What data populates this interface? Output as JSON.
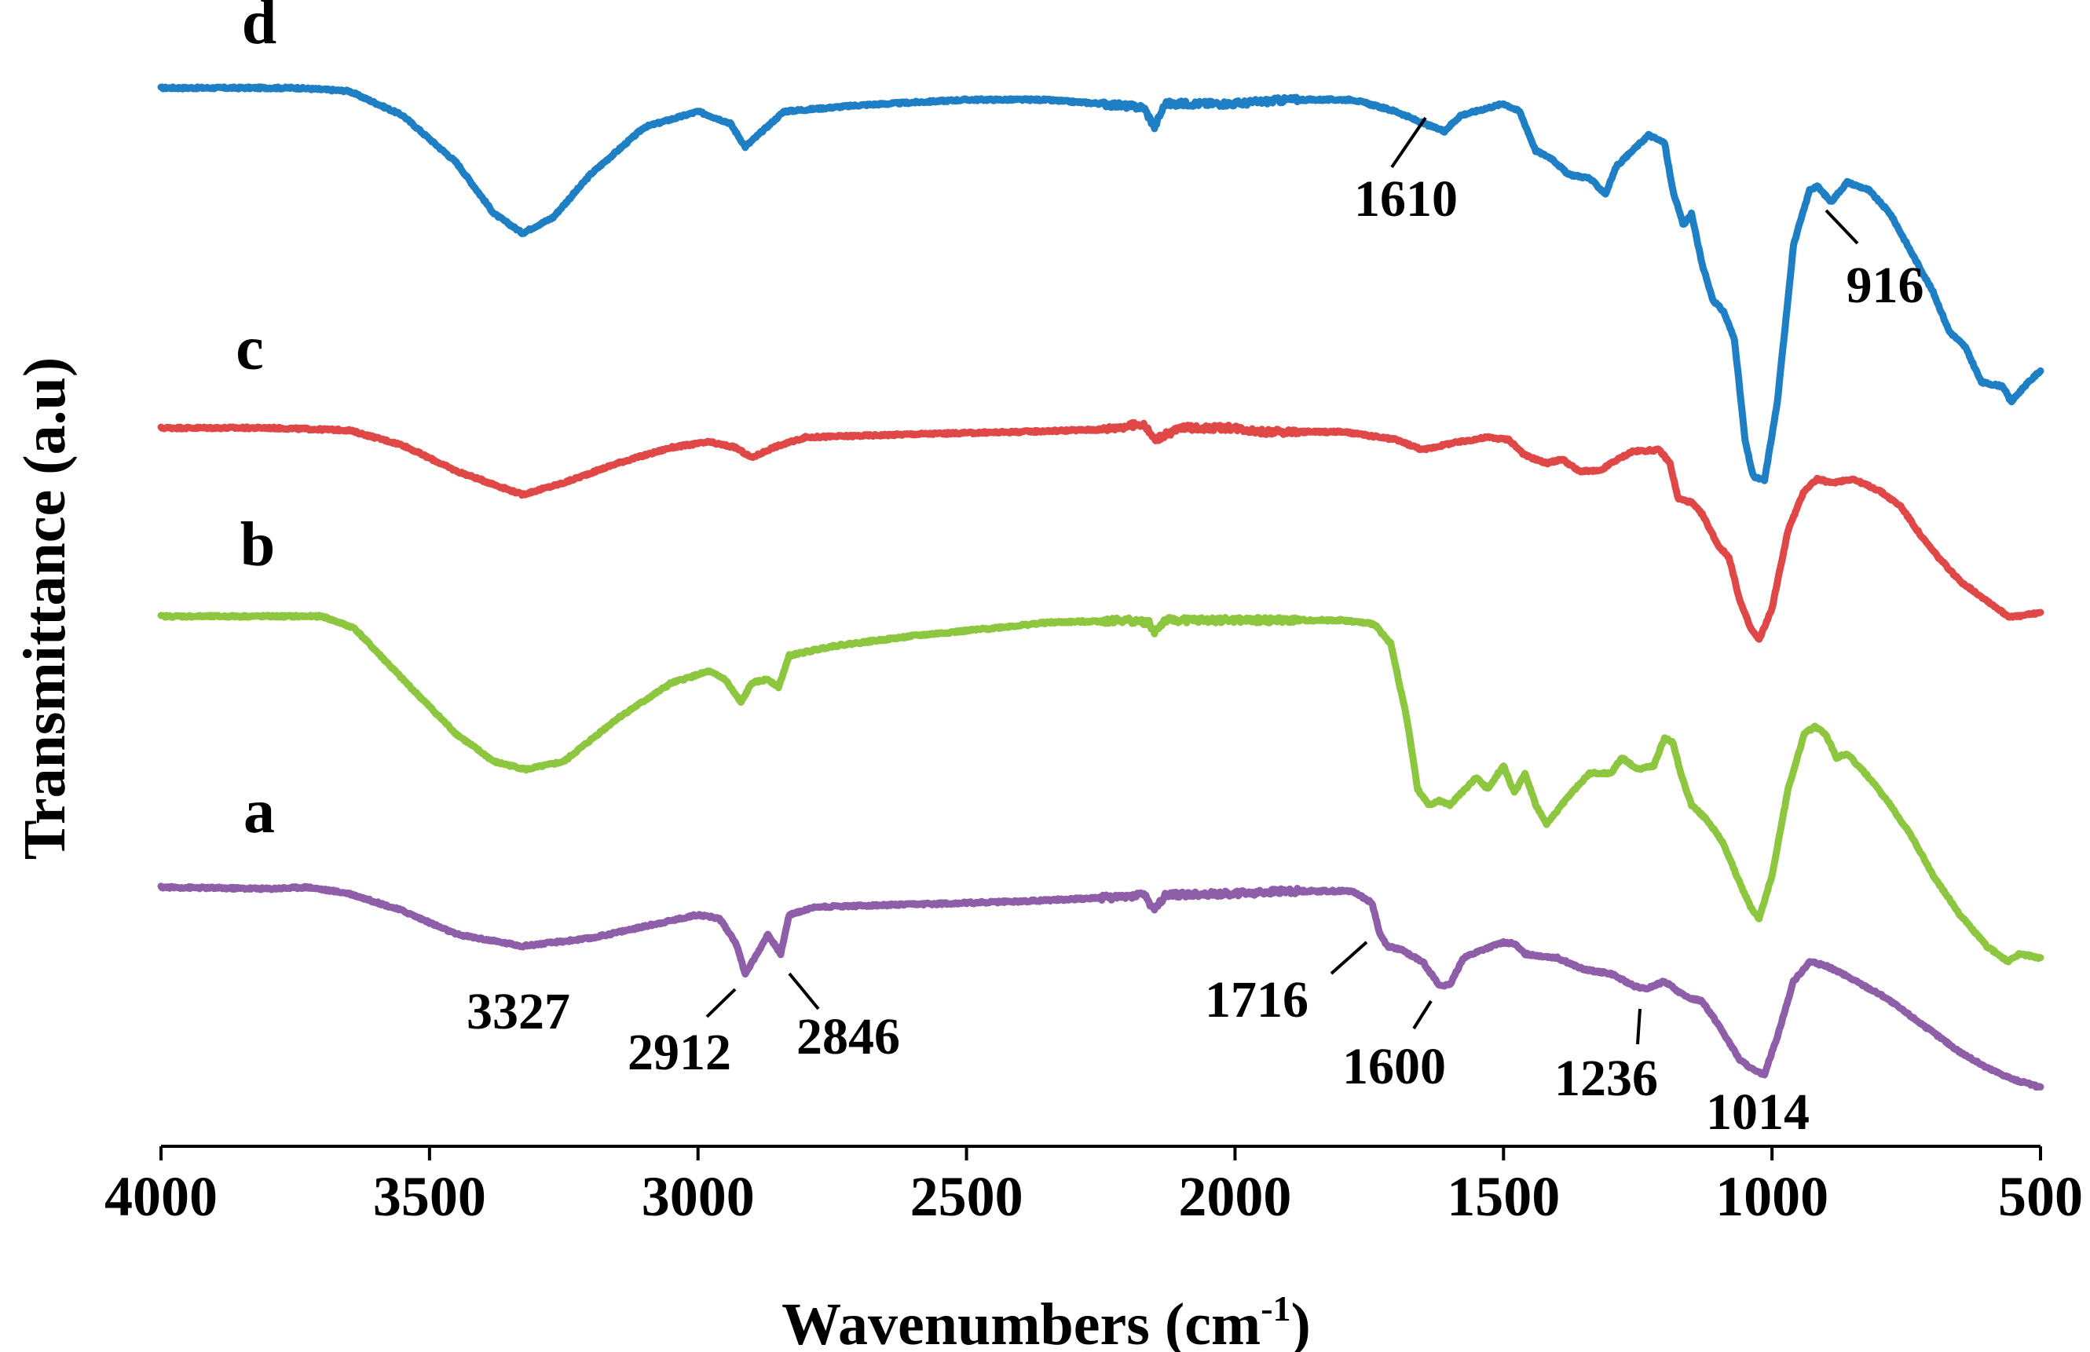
{
  "chart_data": {
    "type": "line",
    "title": "",
    "xlabel": "Wavenumbers (cm-1)",
    "xlabel_main": "Wavenumbers (cm",
    "xlabel_sup": "-1",
    "xlabel_close": ")",
    "ylabel": "Transmittance (a.u)",
    "xlim": [
      4000,
      500
    ],
    "x_reversed": true,
    "grid": false,
    "x_ticks": [
      4000,
      3500,
      3000,
      2500,
      2000,
      1500,
      1000,
      500
    ],
    "x_tick_labels": [
      "4000",
      "3500",
      "3000",
      "2500",
      "2000",
      "1500",
      "1000",
      "500"
    ],
    "y_units": "arbitrary (spectra vertically offset, baseline 0 at top of each trace)",
    "series": [
      {
        "name": "d",
        "label": "d",
        "color": "#1f7fc4",
        "offset": 0,
        "points": [
          [
            4000,
            0
          ],
          [
            3900,
            0
          ],
          [
            3750,
            0
          ],
          [
            3650,
            -4
          ],
          [
            3550,
            -35
          ],
          [
            3450,
            -95
          ],
          [
            3380,
            -160
          ],
          [
            3327,
            -185
          ],
          [
            3270,
            -165
          ],
          [
            3200,
            -110
          ],
          [
            3100,
            -50
          ],
          [
            3000,
            -30
          ],
          [
            2940,
            -45
          ],
          [
            2912,
            -75
          ],
          [
            2880,
            -55
          ],
          [
            2840,
            -30
          ],
          [
            2700,
            -22
          ],
          [
            2500,
            -15
          ],
          [
            2360,
            -15
          ],
          [
            2250,
            -20
          ],
          [
            2170,
            -25
          ],
          [
            2150,
            -50
          ],
          [
            2130,
            -20
          ],
          [
            2000,
            -20
          ],
          [
            1900,
            -15
          ],
          [
            1780,
            -15
          ],
          [
            1700,
            -30
          ],
          [
            1650,
            -45
          ],
          [
            1610,
            -55
          ],
          [
            1580,
            -35
          ],
          [
            1500,
            -20
          ],
          [
            1470,
            -30
          ],
          [
            1440,
            -80
          ],
          [
            1410,
            -90
          ],
          [
            1380,
            -110
          ],
          [
            1340,
            -115
          ],
          [
            1310,
            -135
          ],
          [
            1290,
            -100
          ],
          [
            1230,
            -60
          ],
          [
            1200,
            -70
          ],
          [
            1185,
            -130
          ],
          [
            1165,
            -175
          ],
          [
            1150,
            -160
          ],
          [
            1130,
            -225
          ],
          [
            1110,
            -270
          ],
          [
            1090,
            -285
          ],
          [
            1070,
            -320
          ],
          [
            1050,
            -450
          ],
          [
            1035,
            -495
          ],
          [
            1014,
            -500
          ],
          [
            990,
            -400
          ],
          [
            960,
            -200
          ],
          [
            930,
            -130
          ],
          [
            916,
            -125
          ],
          [
            890,
            -145
          ],
          [
            860,
            -120
          ],
          [
            820,
            -130
          ],
          [
            780,
            -160
          ],
          [
            740,
            -210
          ],
          [
            700,
            -260
          ],
          [
            670,
            -310
          ],
          [
            640,
            -330
          ],
          [
            610,
            -375
          ],
          [
            570,
            -380
          ],
          [
            555,
            -400
          ],
          [
            530,
            -380
          ],
          [
            500,
            -360
          ]
        ]
      },
      {
        "name": "c",
        "label": "c",
        "color": "#e04848",
        "offset": 0,
        "points": [
          [
            4000,
            0
          ],
          [
            3800,
            0
          ],
          [
            3650,
            -3
          ],
          [
            3550,
            -22
          ],
          [
            3450,
            -55
          ],
          [
            3327,
            -85
          ],
          [
            3250,
            -70
          ],
          [
            3150,
            -45
          ],
          [
            3050,
            -25
          ],
          [
            2980,
            -18
          ],
          [
            2930,
            -25
          ],
          [
            2900,
            -38
          ],
          [
            2860,
            -25
          ],
          [
            2800,
            -12
          ],
          [
            2600,
            -8
          ],
          [
            2400,
            -5
          ],
          [
            2250,
            -2
          ],
          [
            2170,
            5
          ],
          [
            2150,
            -15
          ],
          [
            2100,
            0
          ],
          [
            2000,
            0
          ],
          [
            1950,
            -5
          ],
          [
            1800,
            -5
          ],
          [
            1700,
            -15
          ],
          [
            1650,
            -28
          ],
          [
            1600,
            -20
          ],
          [
            1530,
            -12
          ],
          [
            1490,
            -15
          ],
          [
            1460,
            -35
          ],
          [
            1420,
            -45
          ],
          [
            1390,
            -40
          ],
          [
            1360,
            -55
          ],
          [
            1320,
            -55
          ],
          [
            1300,
            -45
          ],
          [
            1260,
            -30
          ],
          [
            1210,
            -28
          ],
          [
            1190,
            -45
          ],
          [
            1175,
            -90
          ],
          [
            1150,
            -95
          ],
          [
            1130,
            -110
          ],
          [
            1100,
            -150
          ],
          [
            1080,
            -165
          ],
          [
            1060,
            -220
          ],
          [
            1040,
            -255
          ],
          [
            1024,
            -270
          ],
          [
            1000,
            -230
          ],
          [
            970,
            -130
          ],
          [
            940,
            -80
          ],
          [
            916,
            -65
          ],
          [
            890,
            -70
          ],
          [
            850,
            -65
          ],
          [
            800,
            -80
          ],
          [
            760,
            -100
          ],
          [
            720,
            -140
          ],
          [
            690,
            -165
          ],
          [
            650,
            -195
          ],
          [
            620,
            -210
          ],
          [
            590,
            -225
          ],
          [
            560,
            -240
          ],
          [
            540,
            -240
          ],
          [
            500,
            -235
          ]
        ]
      },
      {
        "name": "b",
        "label": "b",
        "color": "#8dc63f",
        "offset": 0,
        "points": [
          [
            4000,
            0
          ],
          [
            3900,
            0
          ],
          [
            3700,
            0
          ],
          [
            3640,
            -15
          ],
          [
            3550,
            -80
          ],
          [
            3450,
            -150
          ],
          [
            3380,
            -185
          ],
          [
            3320,
            -195
          ],
          [
            3250,
            -185
          ],
          [
            3150,
            -130
          ],
          [
            3050,
            -85
          ],
          [
            2980,
            -70
          ],
          [
            2950,
            -80
          ],
          [
            2920,
            -110
          ],
          [
            2900,
            -85
          ],
          [
            2870,
            -80
          ],
          [
            2850,
            -90
          ],
          [
            2830,
            -50
          ],
          [
            2750,
            -38
          ],
          [
            2600,
            -25
          ],
          [
            2450,
            -15
          ],
          [
            2350,
            -8
          ],
          [
            2200,
            -5
          ],
          [
            2160,
            -8
          ],
          [
            2150,
            -20
          ],
          [
            2130,
            -5
          ],
          [
            2000,
            -5
          ],
          [
            1800,
            -5
          ],
          [
            1740,
            -10
          ],
          [
            1710,
            -35
          ],
          [
            1680,
            -130
          ],
          [
            1660,
            -220
          ],
          [
            1640,
            -240
          ],
          [
            1620,
            -235
          ],
          [
            1600,
            -240
          ],
          [
            1550,
            -205
          ],
          [
            1530,
            -220
          ],
          [
            1500,
            -190
          ],
          [
            1480,
            -225
          ],
          [
            1460,
            -200
          ],
          [
            1440,
            -240
          ],
          [
            1420,
            -265
          ],
          [
            1380,
            -230
          ],
          [
            1340,
            -200
          ],
          [
            1300,
            -200
          ],
          [
            1280,
            -180
          ],
          [
            1250,
            -195
          ],
          [
            1220,
            -190
          ],
          [
            1200,
            -155
          ],
          [
            1185,
            -160
          ],
          [
            1170,
            -200
          ],
          [
            1150,
            -240
          ],
          [
            1120,
            -260
          ],
          [
            1090,
            -290
          ],
          [
            1060,
            -340
          ],
          [
            1040,
            -370
          ],
          [
            1024,
            -385
          ],
          [
            1000,
            -330
          ],
          [
            970,
            -220
          ],
          [
            940,
            -150
          ],
          [
            920,
            -140
          ],
          [
            900,
            -150
          ],
          [
            880,
            -180
          ],
          [
            860,
            -175
          ],
          [
            820,
            -205
          ],
          [
            780,
            -240
          ],
          [
            740,
            -280
          ],
          [
            700,
            -330
          ],
          [
            650,
            -380
          ],
          [
            600,
            -420
          ],
          [
            560,
            -440
          ],
          [
            540,
            -430
          ],
          [
            500,
            -435
          ]
        ]
      },
      {
        "name": "a",
        "label": "a",
        "color": "#8e5ea8",
        "offset": 0,
        "points": [
          [
            4000,
            0
          ],
          [
            3800,
            -2
          ],
          [
            3727,
            0
          ],
          [
            3650,
            -8
          ],
          [
            3550,
            -30
          ],
          [
            3450,
            -60
          ],
          [
            3327,
            -75
          ],
          [
            3200,
            -65
          ],
          [
            3100,
            -50
          ],
          [
            3000,
            -35
          ],
          [
            2960,
            -40
          ],
          [
            2930,
            -70
          ],
          [
            2912,
            -110
          ],
          [
            2890,
            -85
          ],
          [
            2870,
            -60
          ],
          [
            2846,
            -85
          ],
          [
            2830,
            -35
          ],
          [
            2780,
            -25
          ],
          [
            2600,
            -22
          ],
          [
            2400,
            -18
          ],
          [
            2200,
            -12
          ],
          [
            2170,
            -8
          ],
          [
            2150,
            -30
          ],
          [
            2130,
            -10
          ],
          [
            2000,
            -8
          ],
          [
            1900,
            -5
          ],
          [
            1780,
            -5
          ],
          [
            1745,
            -20
          ],
          [
            1730,
            -60
          ],
          [
            1716,
            -75
          ],
          [
            1690,
            -80
          ],
          [
            1650,
            -95
          ],
          [
            1620,
            -125
          ],
          [
            1600,
            -125
          ],
          [
            1575,
            -90
          ],
          [
            1540,
            -80
          ],
          [
            1500,
            -70
          ],
          [
            1480,
            -72
          ],
          [
            1460,
            -85
          ],
          [
            1400,
            -90
          ],
          [
            1350,
            -105
          ],
          [
            1300,
            -110
          ],
          [
            1260,
            -125
          ],
          [
            1236,
            -130
          ],
          [
            1200,
            -120
          ],
          [
            1160,
            -140
          ],
          [
            1130,
            -145
          ],
          [
            1100,
            -175
          ],
          [
            1060,
            -220
          ],
          [
            1030,
            -235
          ],
          [
            1014,
            -238
          ],
          [
            990,
            -190
          ],
          [
            960,
            -120
          ],
          [
            930,
            -95
          ],
          [
            900,
            -100
          ],
          [
            870,
            -110
          ],
          [
            830,
            -125
          ],
          [
            790,
            -140
          ],
          [
            740,
            -165
          ],
          [
            700,
            -185
          ],
          [
            650,
            -210
          ],
          [
            600,
            -230
          ],
          [
            550,
            -245
          ],
          [
            500,
            -255
          ]
        ]
      }
    ],
    "labels": [
      {
        "text": "d",
        "series": "d"
      },
      {
        "text": "c",
        "series": "c"
      },
      {
        "text": "b",
        "series": "b"
      },
      {
        "text": "a",
        "series": "a"
      }
    ],
    "annotations": [
      {
        "text": "1610",
        "x": 1610,
        "series": "d"
      },
      {
        "text": "916",
        "x": 916,
        "series": "d"
      },
      {
        "text": "3327",
        "x": 3327,
        "series": "a"
      },
      {
        "text": "2912",
        "x": 2912,
        "series": "a"
      },
      {
        "text": "2846",
        "x": 2846,
        "series": "a"
      },
      {
        "text": "1716",
        "x": 1716,
        "series": "a"
      },
      {
        "text": "1600",
        "x": 1600,
        "series": "a"
      },
      {
        "text": "1236",
        "x": 1236,
        "series": "a"
      },
      {
        "text": "1014",
        "x": 1014,
        "series": "a"
      }
    ]
  }
}
